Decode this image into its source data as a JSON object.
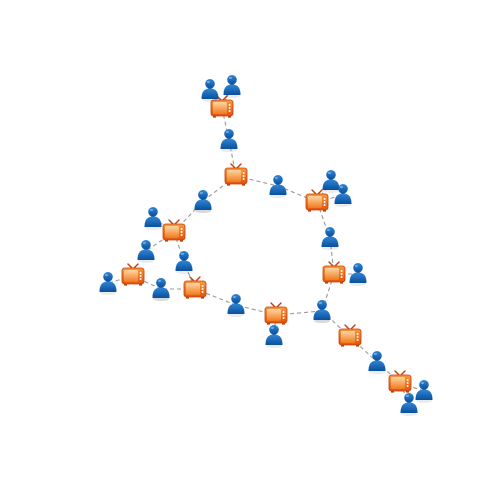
{
  "colors": {
    "background": "#ffffff",
    "edge": "#9a9a9a",
    "person_dark": "#0a4f9b",
    "person_light": "#2f86d6",
    "tv_body_dark": "#e2530f",
    "tv_body_light": "#f99a3c",
    "tv_frame": "#c23f0a",
    "tv_screen_dark": "#f07a1d",
    "tv_screen_light": "#ffd6a4"
  },
  "nodes": [
    {
      "id": "tv1",
      "kind": "tv-icon"
    },
    {
      "id": "p1",
      "kind": "person-icon"
    },
    {
      "id": "p2",
      "kind": "person-icon"
    },
    {
      "id": "p3",
      "kind": "person-icon"
    },
    {
      "id": "tv2",
      "kind": "tv-icon"
    },
    {
      "id": "p4",
      "kind": "person-icon"
    },
    {
      "id": "p5",
      "kind": "person-icon"
    },
    {
      "id": "tv3",
      "kind": "tv-icon"
    },
    {
      "id": "p6",
      "kind": "person-icon"
    },
    {
      "id": "p7",
      "kind": "person-icon"
    },
    {
      "id": "p8",
      "kind": "person-icon"
    },
    {
      "id": "tv4",
      "kind": "tv-icon"
    },
    {
      "id": "p9",
      "kind": "person-icon"
    },
    {
      "id": "tv5",
      "kind": "tv-icon"
    },
    {
      "id": "p10",
      "kind": "person-icon"
    },
    {
      "id": "p11",
      "kind": "person-icon"
    },
    {
      "id": "tv6",
      "kind": "tv-icon"
    },
    {
      "id": "p12",
      "kind": "person-icon"
    },
    {
      "id": "p13",
      "kind": "person-icon"
    },
    {
      "id": "tv7",
      "kind": "tv-icon"
    },
    {
      "id": "p14",
      "kind": "person-icon"
    },
    {
      "id": "p15",
      "kind": "person-icon"
    },
    {
      "id": "tv8",
      "kind": "tv-icon"
    },
    {
      "id": "p16",
      "kind": "person-icon"
    },
    {
      "id": "p17",
      "kind": "person-icon"
    },
    {
      "id": "p18",
      "kind": "person-icon"
    },
    {
      "id": "p19",
      "kind": "person-icon"
    },
    {
      "id": "tv9",
      "kind": "tv-icon"
    },
    {
      "id": "p20",
      "kind": "person-icon"
    },
    {
      "id": "p21",
      "kind": "person-icon"
    },
    {
      "id": "tv10",
      "kind": "tv-icon"
    },
    {
      "id": "p22",
      "kind": "person-icon"
    },
    {
      "id": "p23",
      "kind": "person-icon"
    }
  ],
  "edges": [
    [
      "p1",
      "tv1"
    ],
    [
      "p2",
      "tv1"
    ],
    [
      "tv1",
      "p3"
    ],
    [
      "p3",
      "tv2"
    ],
    [
      "tv2",
      "p4"
    ],
    [
      "p4",
      "tv3"
    ],
    [
      "tv3",
      "p6"
    ],
    [
      "tv3",
      "p7"
    ],
    [
      "tv3",
      "p8"
    ],
    [
      "p8",
      "tv4"
    ],
    [
      "tv4",
      "p9"
    ],
    [
      "p9",
      "tv5"
    ],
    [
      "tv5",
      "p10"
    ],
    [
      "p10",
      "tv6"
    ],
    [
      "tv6",
      "p11"
    ],
    [
      "p11",
      "tv7"
    ],
    [
      "tv7",
      "p12"
    ],
    [
      "p12",
      "tv8"
    ],
    [
      "tv8",
      "p13"
    ],
    [
      "p13",
      "tv9"
    ],
    [
      "tv9",
      "p21"
    ],
    [
      "tv9",
      "p20"
    ],
    [
      "tv9",
      "p19"
    ],
    [
      "p19",
      "tv10"
    ],
    [
      "p21",
      "tv8"
    ],
    [
      "p20",
      "tv7"
    ],
    [
      "tv7",
      "p16"
    ],
    [
      "p16",
      "p17"
    ],
    [
      "tv7",
      "p15"
    ],
    [
      "p15",
      "p14"
    ],
    [
      "p14",
      "tv1"
    ],
    [
      "tv5",
      "p18"
    ],
    [
      "tv2",
      "p5"
    ],
    [
      "tv10",
      "p22"
    ],
    [
      "tv10",
      "p23"
    ]
  ]
}
